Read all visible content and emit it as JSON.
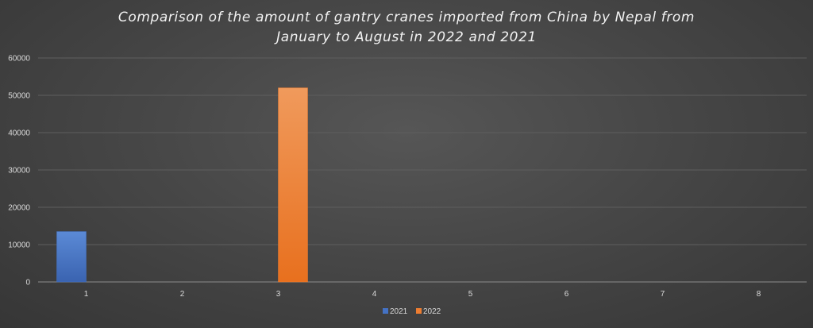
{
  "chart_data": {
    "type": "bar",
    "title_lines": [
      "Comparison of the amount of gantry cranes imported from China by Nepal from",
      "January to August in 2022 and 2021"
    ],
    "categories": [
      "1",
      "2",
      "3",
      "4",
      "5",
      "6",
      "7",
      "8"
    ],
    "series": [
      {
        "name": "2021",
        "color": "#4472c4",
        "values": [
          13500,
          0,
          0,
          0,
          0,
          0,
          0,
          0
        ]
      },
      {
        "name": "2022",
        "color": "#ed7d31",
        "values": [
          0,
          0,
          52000,
          0,
          0,
          0,
          0,
          0
        ]
      }
    ],
    "ylim": [
      0,
      60000
    ],
    "yticks": [
      0,
      10000,
      20000,
      30000,
      40000,
      50000,
      60000
    ],
    "grid": true,
    "legend": "bottom"
  }
}
